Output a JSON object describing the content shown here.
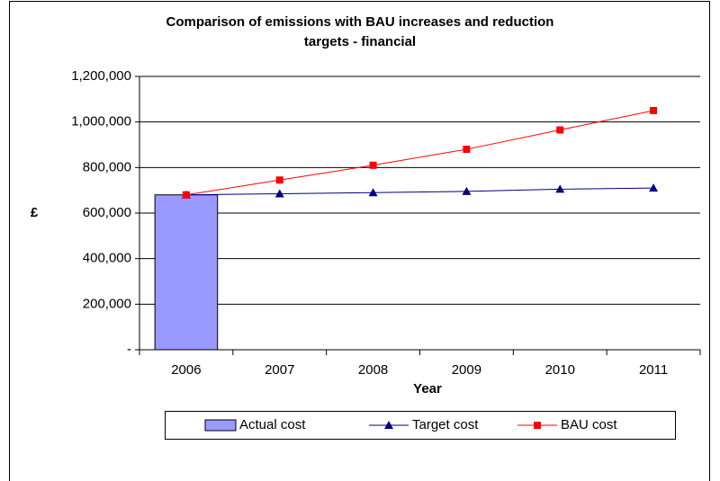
{
  "chart_data": {
    "type": "bar",
    "title": "Comparison of emissions with BAU increases and reduction targets - financial",
    "x_label": "Year",
    "y_label": "£",
    "categories": [
      "2006",
      "2007",
      "2008",
      "2009",
      "2010",
      "2011"
    ],
    "series": [
      {
        "name": "Actual cost",
        "type": "bar",
        "color": "#9999ff",
        "values": [
          680000,
          null,
          null,
          null,
          null,
          null
        ]
      },
      {
        "name": "Target cost",
        "type": "line",
        "marker": "triangle",
        "color": "#000080",
        "values": [
          680000,
          685000,
          690000,
          695000,
          705000,
          710000
        ]
      },
      {
        "name": "BAU cost",
        "type": "line",
        "marker": "square",
        "color": "#ff0000",
        "values": [
          680000,
          745000,
          810000,
          880000,
          965000,
          1050000
        ]
      }
    ],
    "ylim": [
      0,
      1200000
    ],
    "yticks": [
      {
        "value": 0,
        "label": "-"
      },
      {
        "value": 200000,
        "label": "200,000"
      },
      {
        "value": 400000,
        "label": "400,000"
      },
      {
        "value": 600000,
        "label": "600,000"
      },
      {
        "value": 800000,
        "label": "800,000"
      },
      {
        "value": 1000000,
        "label": "1,000,000"
      },
      {
        "value": 1200000,
        "label": "1,200,000"
      }
    ],
    "grid": true,
    "legend": "bottom"
  }
}
